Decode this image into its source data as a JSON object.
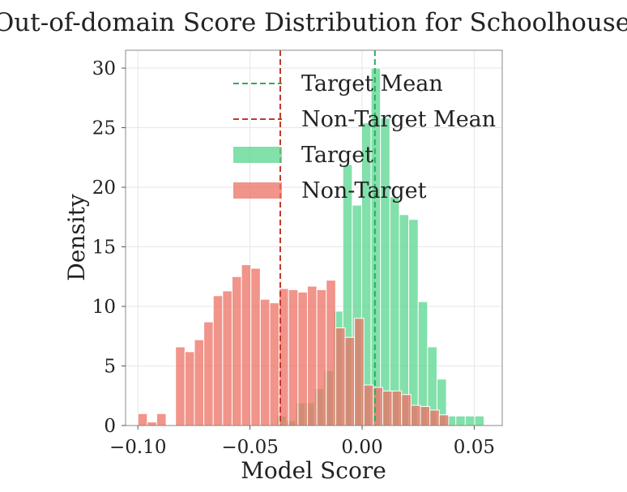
{
  "chart_data": {
    "type": "histogram",
    "title": "Out-of-domain Score Distribution for Schoolhouse",
    "xlabel": "Model Score",
    "ylabel": "Density",
    "xlim": [
      -0.1055,
      0.0625
    ],
    "ylim": [
      0,
      31.5
    ],
    "xticks": [
      -0.1,
      -0.05,
      0.0,
      0.05
    ],
    "xtick_labels": [
      "−0.10",
      "−0.05",
      "0.00",
      "0.05"
    ],
    "yticks": [
      0,
      5,
      10,
      15,
      20,
      25,
      30
    ],
    "ytick_labels": [
      "0",
      "5",
      "10",
      "15",
      "20",
      "25",
      "30"
    ],
    "grid": true,
    "legend_position": "top-right",
    "bin_width": 0.0042,
    "series": [
      {
        "name": "Target",
        "color": "#58d68d",
        "bins": [
          {
            "x0": -0.038,
            "y": 0.8
          },
          {
            "x0": -0.0338,
            "y": 0.4
          },
          {
            "x0": -0.0296,
            "y": 1.9
          },
          {
            "x0": -0.0254,
            "y": 1.9
          },
          {
            "x0": -0.0212,
            "y": 3.1
          },
          {
            "x0": -0.017,
            "y": 4.6
          },
          {
            "x0": -0.0128,
            "y": 9.6
          },
          {
            "x0": -0.0086,
            "y": 21.9
          },
          {
            "x0": -0.0044,
            "y": 18.5
          },
          {
            "x0": -0.0002,
            "y": 25.4
          },
          {
            "x0": 0.004,
            "y": 30.0
          },
          {
            "x0": 0.0082,
            "y": 25.8
          },
          {
            "x0": 0.0124,
            "y": 19.2
          },
          {
            "x0": 0.0166,
            "y": 17.7
          },
          {
            "x0": 0.0208,
            "y": 17.3
          },
          {
            "x0": 0.025,
            "y": 10.4
          },
          {
            "x0": 0.0292,
            "y": 6.6
          },
          {
            "x0": 0.0334,
            "y": 3.9
          },
          {
            "x0": 0.0376,
            "y": 0.8
          },
          {
            "x0": 0.0418,
            "y": 0.8
          },
          {
            "x0": 0.046,
            "y": 0.8
          },
          {
            "x0": 0.0502,
            "y": 0.8
          }
        ]
      },
      {
        "name": "Non-Target",
        "color": "#ec7063",
        "bins": [
          {
            "x0": -0.1,
            "y": 1.0
          },
          {
            "x0": -0.0958,
            "y": 0.3
          },
          {
            "x0": -0.0916,
            "y": 1.0
          },
          {
            "x0": -0.0874,
            "y": 0.0
          },
          {
            "x0": -0.0832,
            "y": 6.6
          },
          {
            "x0": -0.079,
            "y": 6.2
          },
          {
            "x0": -0.0748,
            "y": 7.2
          },
          {
            "x0": -0.0706,
            "y": 8.7
          },
          {
            "x0": -0.0664,
            "y": 10.9
          },
          {
            "x0": -0.0622,
            "y": 11.3
          },
          {
            "x0": -0.058,
            "y": 12.5
          },
          {
            "x0": -0.0538,
            "y": 13.5
          },
          {
            "x0": -0.0496,
            "y": 13.2
          },
          {
            "x0": -0.0454,
            "y": 10.6
          },
          {
            "x0": -0.0412,
            "y": 10.3
          },
          {
            "x0": -0.037,
            "y": 11.5
          },
          {
            "x0": -0.0328,
            "y": 11.4
          },
          {
            "x0": -0.0286,
            "y": 11.2
          },
          {
            "x0": -0.0244,
            "y": 11.7
          },
          {
            "x0": -0.0202,
            "y": 11.4
          },
          {
            "x0": -0.016,
            "y": 12.2
          },
          {
            "x0": -0.0118,
            "y": 8.2
          },
          {
            "x0": -0.0076,
            "y": 7.4
          },
          {
            "x0": -0.0034,
            "y": 9.0
          },
          {
            "x0": 0.0008,
            "y": 3.4
          },
          {
            "x0": 0.005,
            "y": 3.2
          },
          {
            "x0": 0.0092,
            "y": 2.9
          },
          {
            "x0": 0.0134,
            "y": 2.9
          },
          {
            "x0": 0.0176,
            "y": 2.6
          },
          {
            "x0": 0.0218,
            "y": 1.7
          },
          {
            "x0": 0.026,
            "y": 1.6
          },
          {
            "x0": 0.0302,
            "y": 1.3
          },
          {
            "x0": 0.0344,
            "y": 0.9
          }
        ]
      }
    ],
    "mean_lines": [
      {
        "name": "Target Mean",
        "x": 0.0057,
        "color": "#27ae60"
      },
      {
        "name": "Non-Target Mean",
        "x": -0.0365,
        "color": "#c0392b"
      }
    ],
    "legend": [
      "Target Mean",
      "Non-Target Mean",
      "Target",
      "Non-Target"
    ]
  }
}
